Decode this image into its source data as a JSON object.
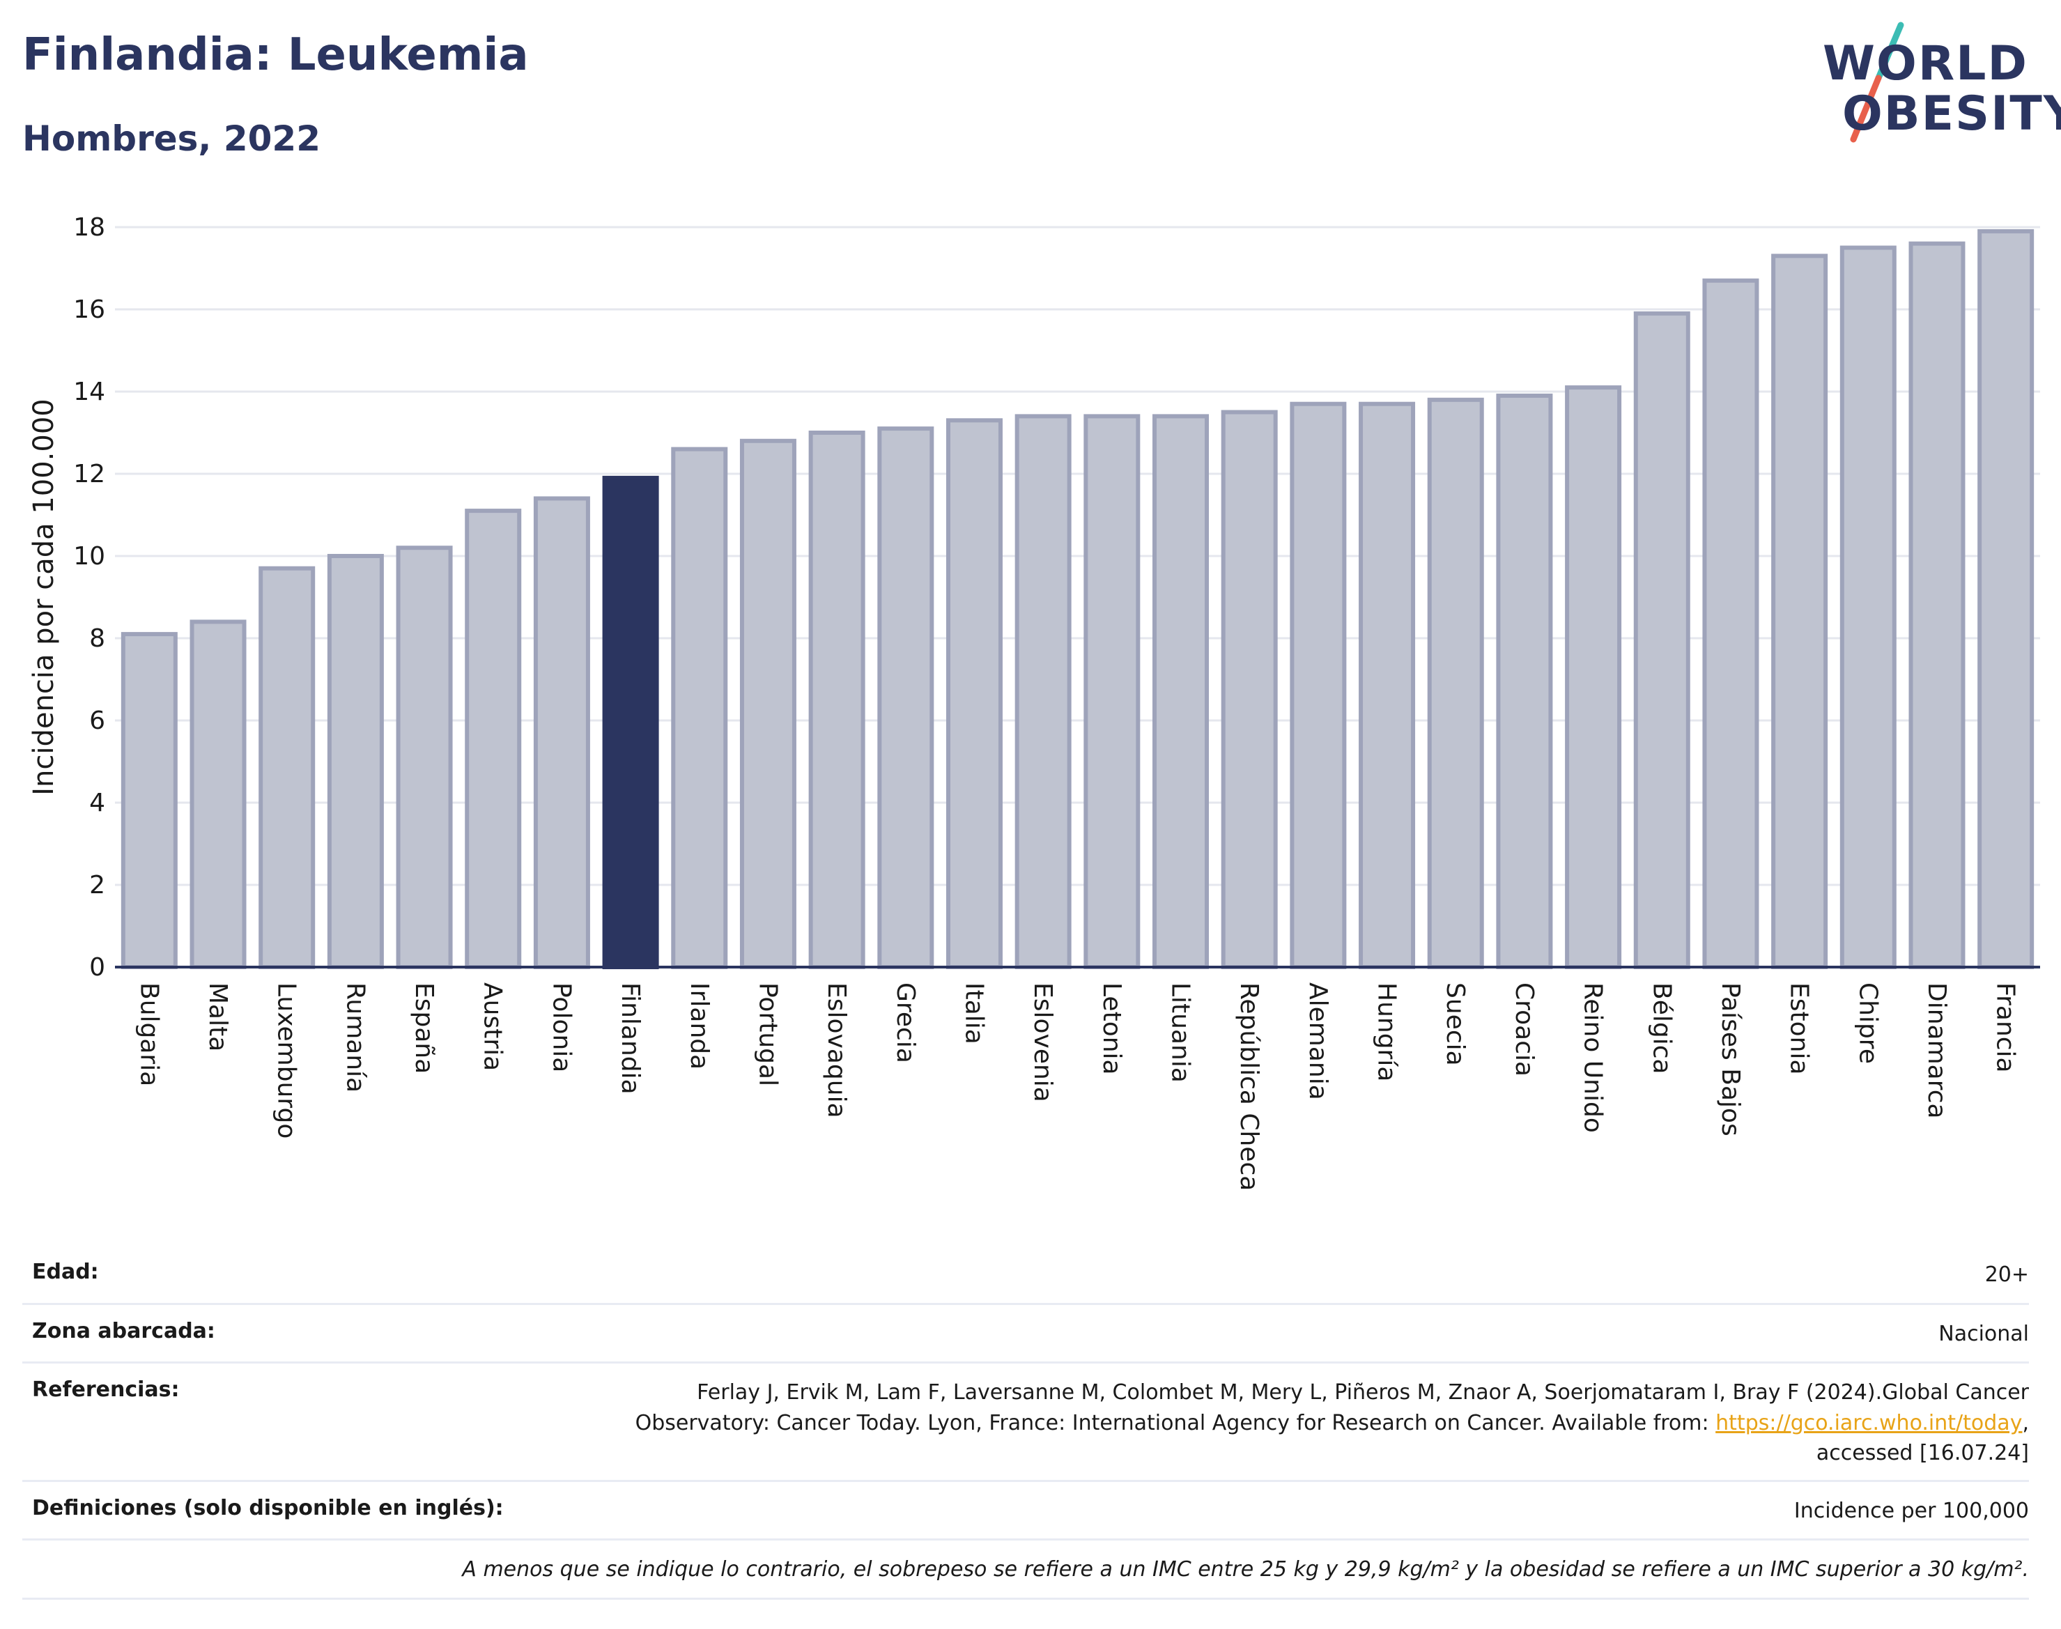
{
  "header": {
    "title": "Finlandia: Leukemia",
    "subtitle": "Hombres, 2022"
  },
  "logo": {
    "line1": "WORLD",
    "line2": "OBESITY",
    "colors": {
      "text": "#2b3560",
      "slash_top": "#3cbcb4",
      "slash_bottom": "#e8604c"
    }
  },
  "colors": {
    "bar": "#bfc3d0",
    "bar_stroke": "#9ea3ba",
    "highlight": "#2b3560",
    "grid": "#e5e7ee",
    "axis": "#2b3560"
  },
  "chart_data": {
    "type": "bar",
    "title": "",
    "xlabel": "",
    "ylabel": "Incidencia por cada 100.000",
    "ylim": [
      0,
      18
    ],
    "yticks": [
      0,
      2,
      4,
      6,
      8,
      10,
      12,
      14,
      16,
      18
    ],
    "grid": true,
    "highlight": "Finlandia",
    "categories": [
      "Bulgaria",
      "Malta",
      "Luxemburgo",
      "Rumanía",
      "España",
      "Austria",
      "Polonia",
      "Finlandia",
      "Irlanda",
      "Portugal",
      "Eslovaquia",
      "Grecia",
      "Italia",
      "Eslovenia",
      "Letonia",
      "Lituania",
      "República Checa",
      "Alemania",
      "Hungría",
      "Suecia",
      "Croacia",
      "Reino Unido",
      "Bélgica",
      "Países Bajos",
      "Estonia",
      "Chipre",
      "Dinamarca",
      "Francia"
    ],
    "values": [
      8.1,
      8.4,
      9.7,
      10.0,
      10.2,
      11.1,
      11.4,
      11.9,
      12.6,
      12.8,
      13.0,
      13.1,
      13.3,
      13.4,
      13.4,
      13.4,
      13.5,
      13.7,
      13.7,
      13.8,
      13.9,
      14.1,
      15.9,
      16.7,
      17.3,
      17.5,
      17.6,
      17.9
    ]
  },
  "meta": {
    "age_label": "Edad:",
    "age_value": "20+",
    "zone_label": "Zona abarcada:",
    "zone_value": "Nacional",
    "refs_label": "Referencias:",
    "refs_text_1": "Ferlay J, Ervik M, Lam F, Laversanne M, Colombet M, Mery L, Piñeros M, Znaor A, Soerjomataram I, Bray F (2024).Global Cancer",
    "refs_text_2": "Observatory: Cancer Today. Lyon, France: International Agency for Research on Cancer. Available from: ",
    "refs_link": "https://gco.iarc.who.int/today",
    "refs_text_3": ",",
    "refs_text_4": "accessed [16.07.24]",
    "defs_label": "Definiciones (solo disponible en inglés):",
    "defs_value": "Incidence per 100,000",
    "footnote": "A menos que se indique lo contrario, el sobrepeso se refiere a un IMC entre 25 kg y 29,9 kg/m² y la obesidad se refiere a un IMC superior a 30 kg/m²."
  }
}
